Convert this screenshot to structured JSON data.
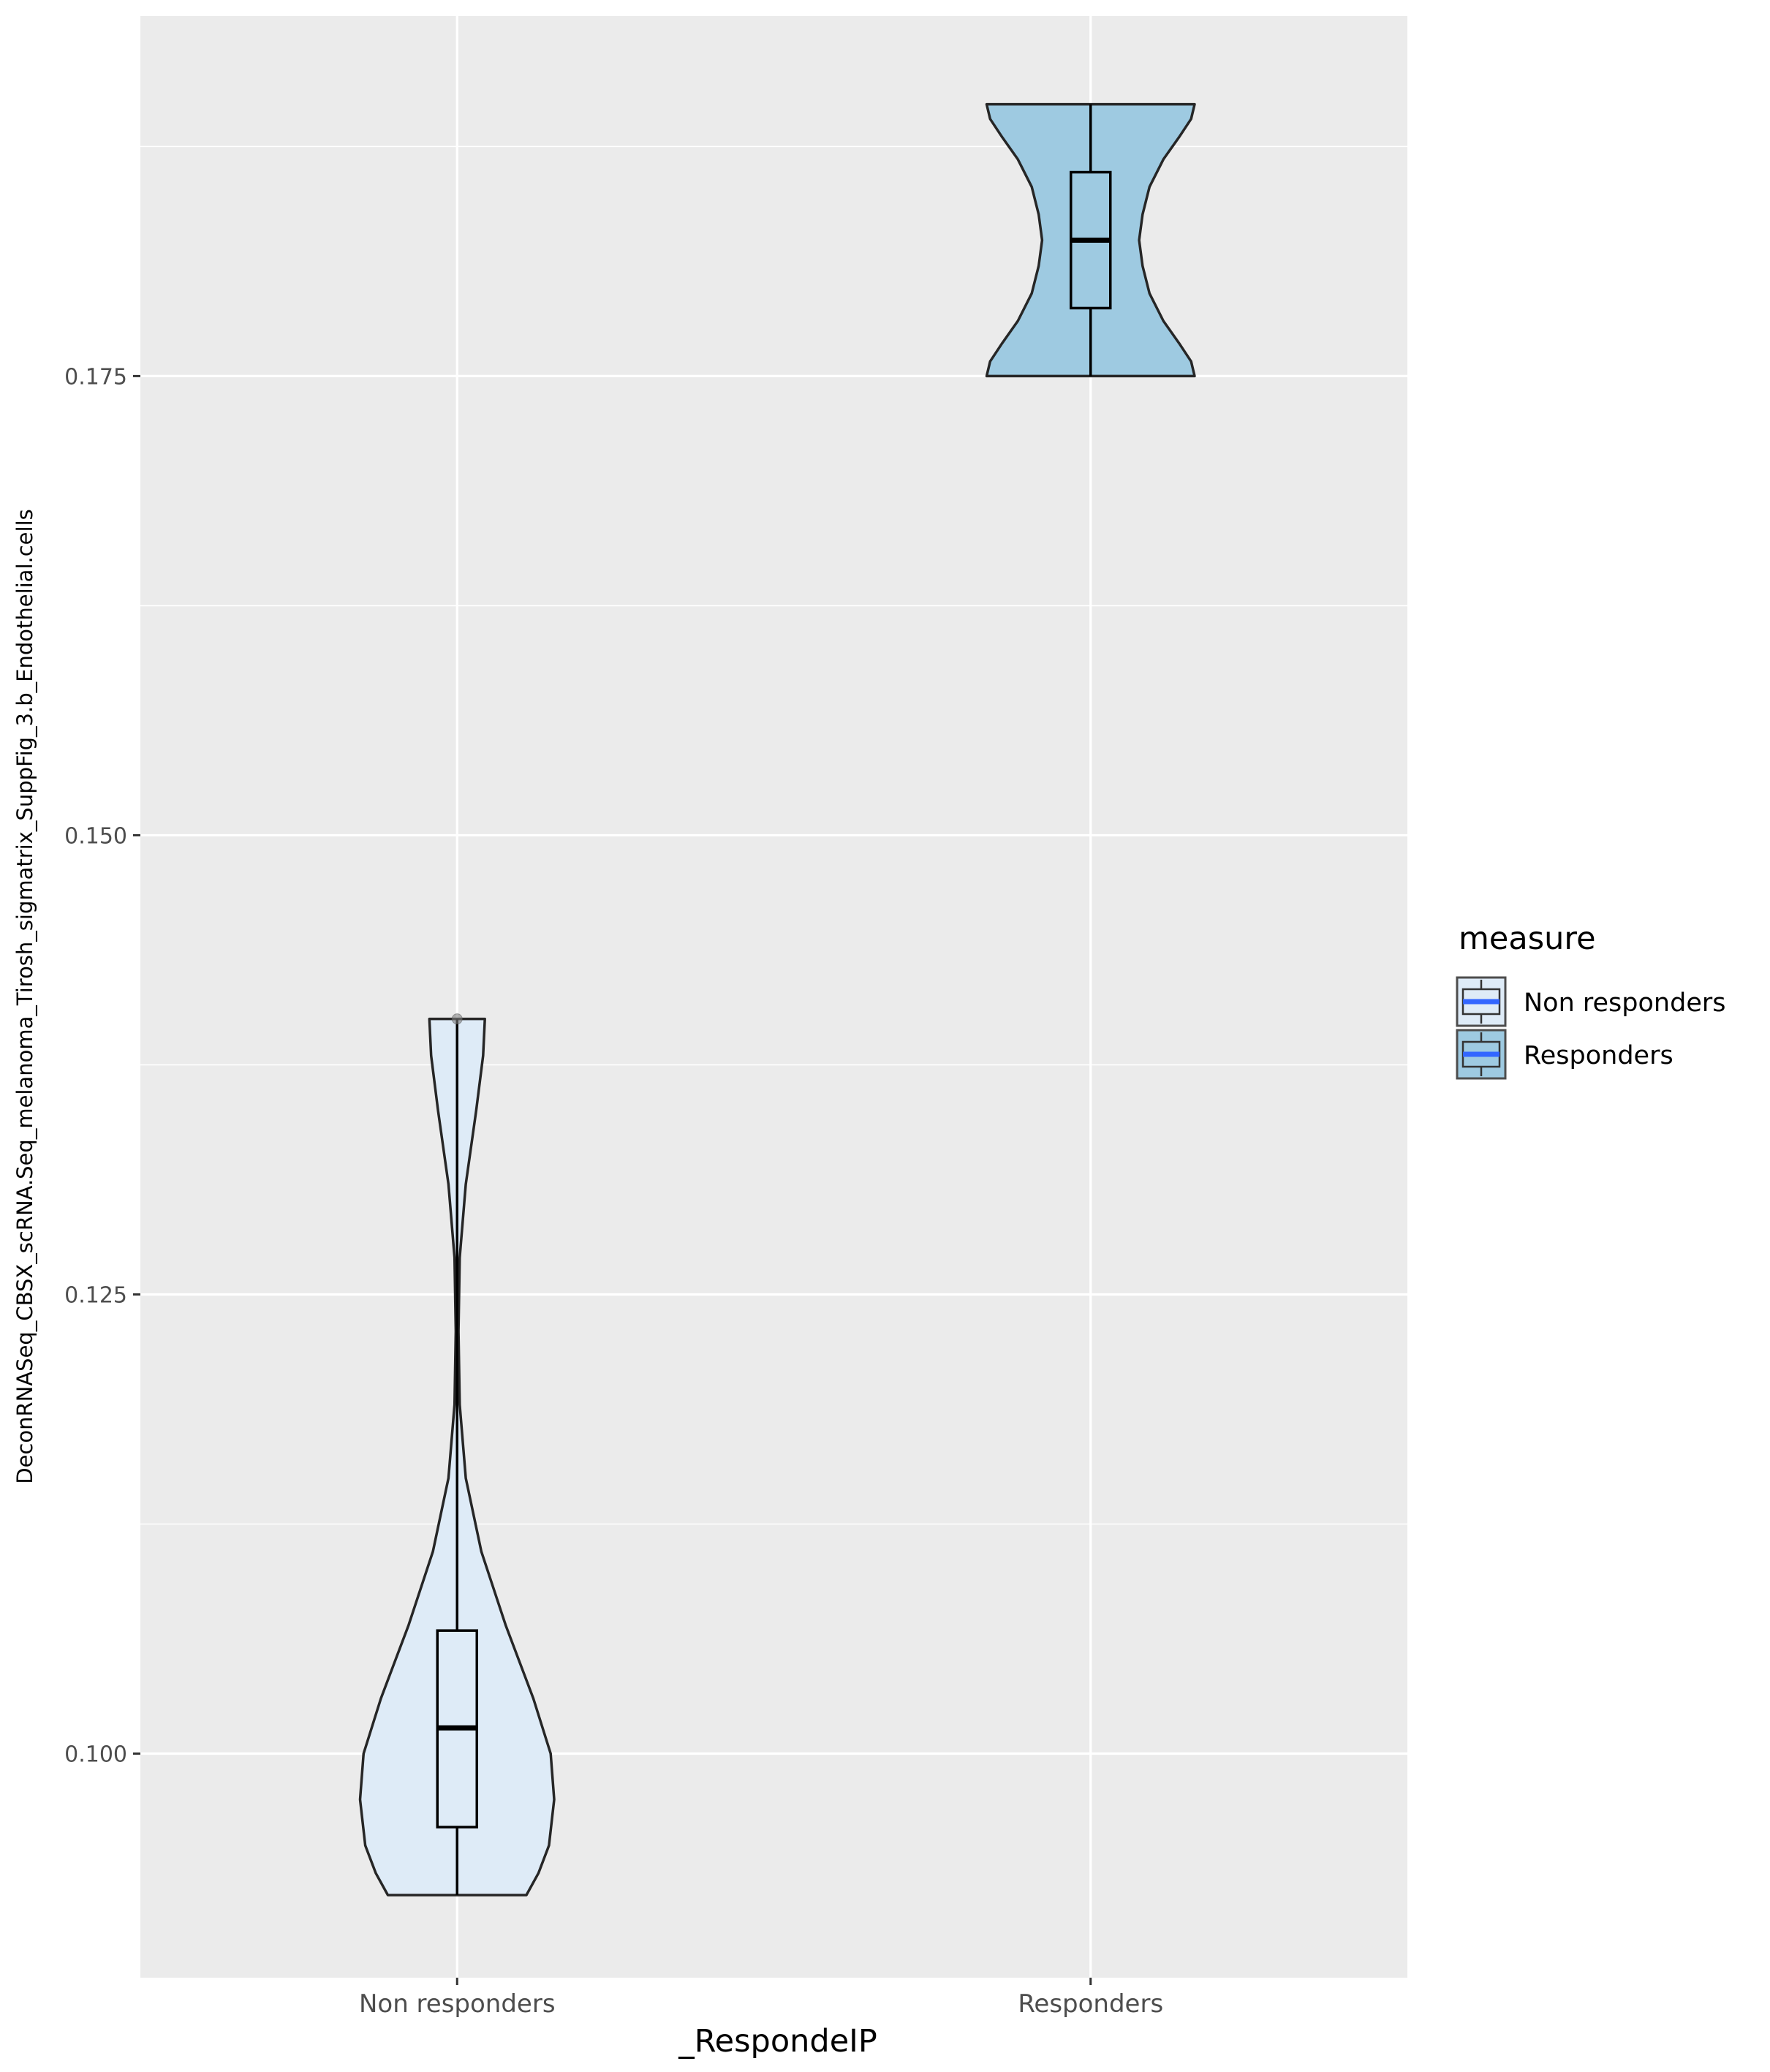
{
  "chart_data": {
    "type": "violin",
    "xlabel": "_RespondeIP",
    "ylabel": "DeconRNASeq_CBSX_scRNA.Seq_melanoma_Tirosh_sigmatrix_SuppFig_3.b_Endothelial.cells",
    "ylim": [
      0.0878,
      0.1946
    ],
    "y_ticks": [
      0.1,
      0.125,
      0.15,
      0.175
    ],
    "y_tick_labels": [
      "0.100",
      "0.125",
      "0.150",
      "0.175"
    ],
    "grid": true,
    "categories": [
      "Non responders",
      "Responders"
    ],
    "legend": {
      "title": "measure",
      "position": "right",
      "entries": [
        "Non responders",
        "Responders"
      ]
    },
    "colors": {
      "panel": "#ebebeb",
      "grid": "#ffffff",
      "non_responders_fill": "#deebf7",
      "responders_fill": "#9ecae1",
      "outline": "#262626",
      "legend_median": "#3366ff"
    },
    "series": [
      {
        "name": "Non responders",
        "min": 0.0923,
        "q1": 0.096,
        "median": 0.1014,
        "q3": 0.1067,
        "max": 0.14,
        "outliers": [
          0.14
        ],
        "density": [
          [
            0.0923,
            0.4
          ],
          [
            0.0935,
            0.47
          ],
          [
            0.095,
            0.53
          ],
          [
            0.0975,
            0.56
          ],
          [
            0.1,
            0.54
          ],
          [
            0.103,
            0.44
          ],
          [
            0.107,
            0.28
          ],
          [
            0.111,
            0.14
          ],
          [
            0.115,
            0.05
          ],
          [
            0.119,
            0.015
          ],
          [
            0.123,
            0.008
          ],
          [
            0.127,
            0.015
          ],
          [
            0.131,
            0.05
          ],
          [
            0.135,
            0.11
          ],
          [
            0.138,
            0.15
          ],
          [
            0.14,
            0.16
          ]
        ]
      },
      {
        "name": "Responders",
        "min": 0.175,
        "q1": 0.1787,
        "median": 0.1824,
        "q3": 0.1861,
        "max": 0.1898,
        "outliers": [],
        "density": [
          [
            0.175,
            0.6
          ],
          [
            0.1758,
            0.58
          ],
          [
            0.1768,
            0.51
          ],
          [
            0.178,
            0.42
          ],
          [
            0.1795,
            0.34
          ],
          [
            0.181,
            0.3
          ],
          [
            0.1824,
            0.28
          ],
          [
            0.1838,
            0.3
          ],
          [
            0.1853,
            0.34
          ],
          [
            0.1868,
            0.42
          ],
          [
            0.188,
            0.51
          ],
          [
            0.189,
            0.58
          ],
          [
            0.1898,
            0.6
          ]
        ]
      }
    ]
  }
}
